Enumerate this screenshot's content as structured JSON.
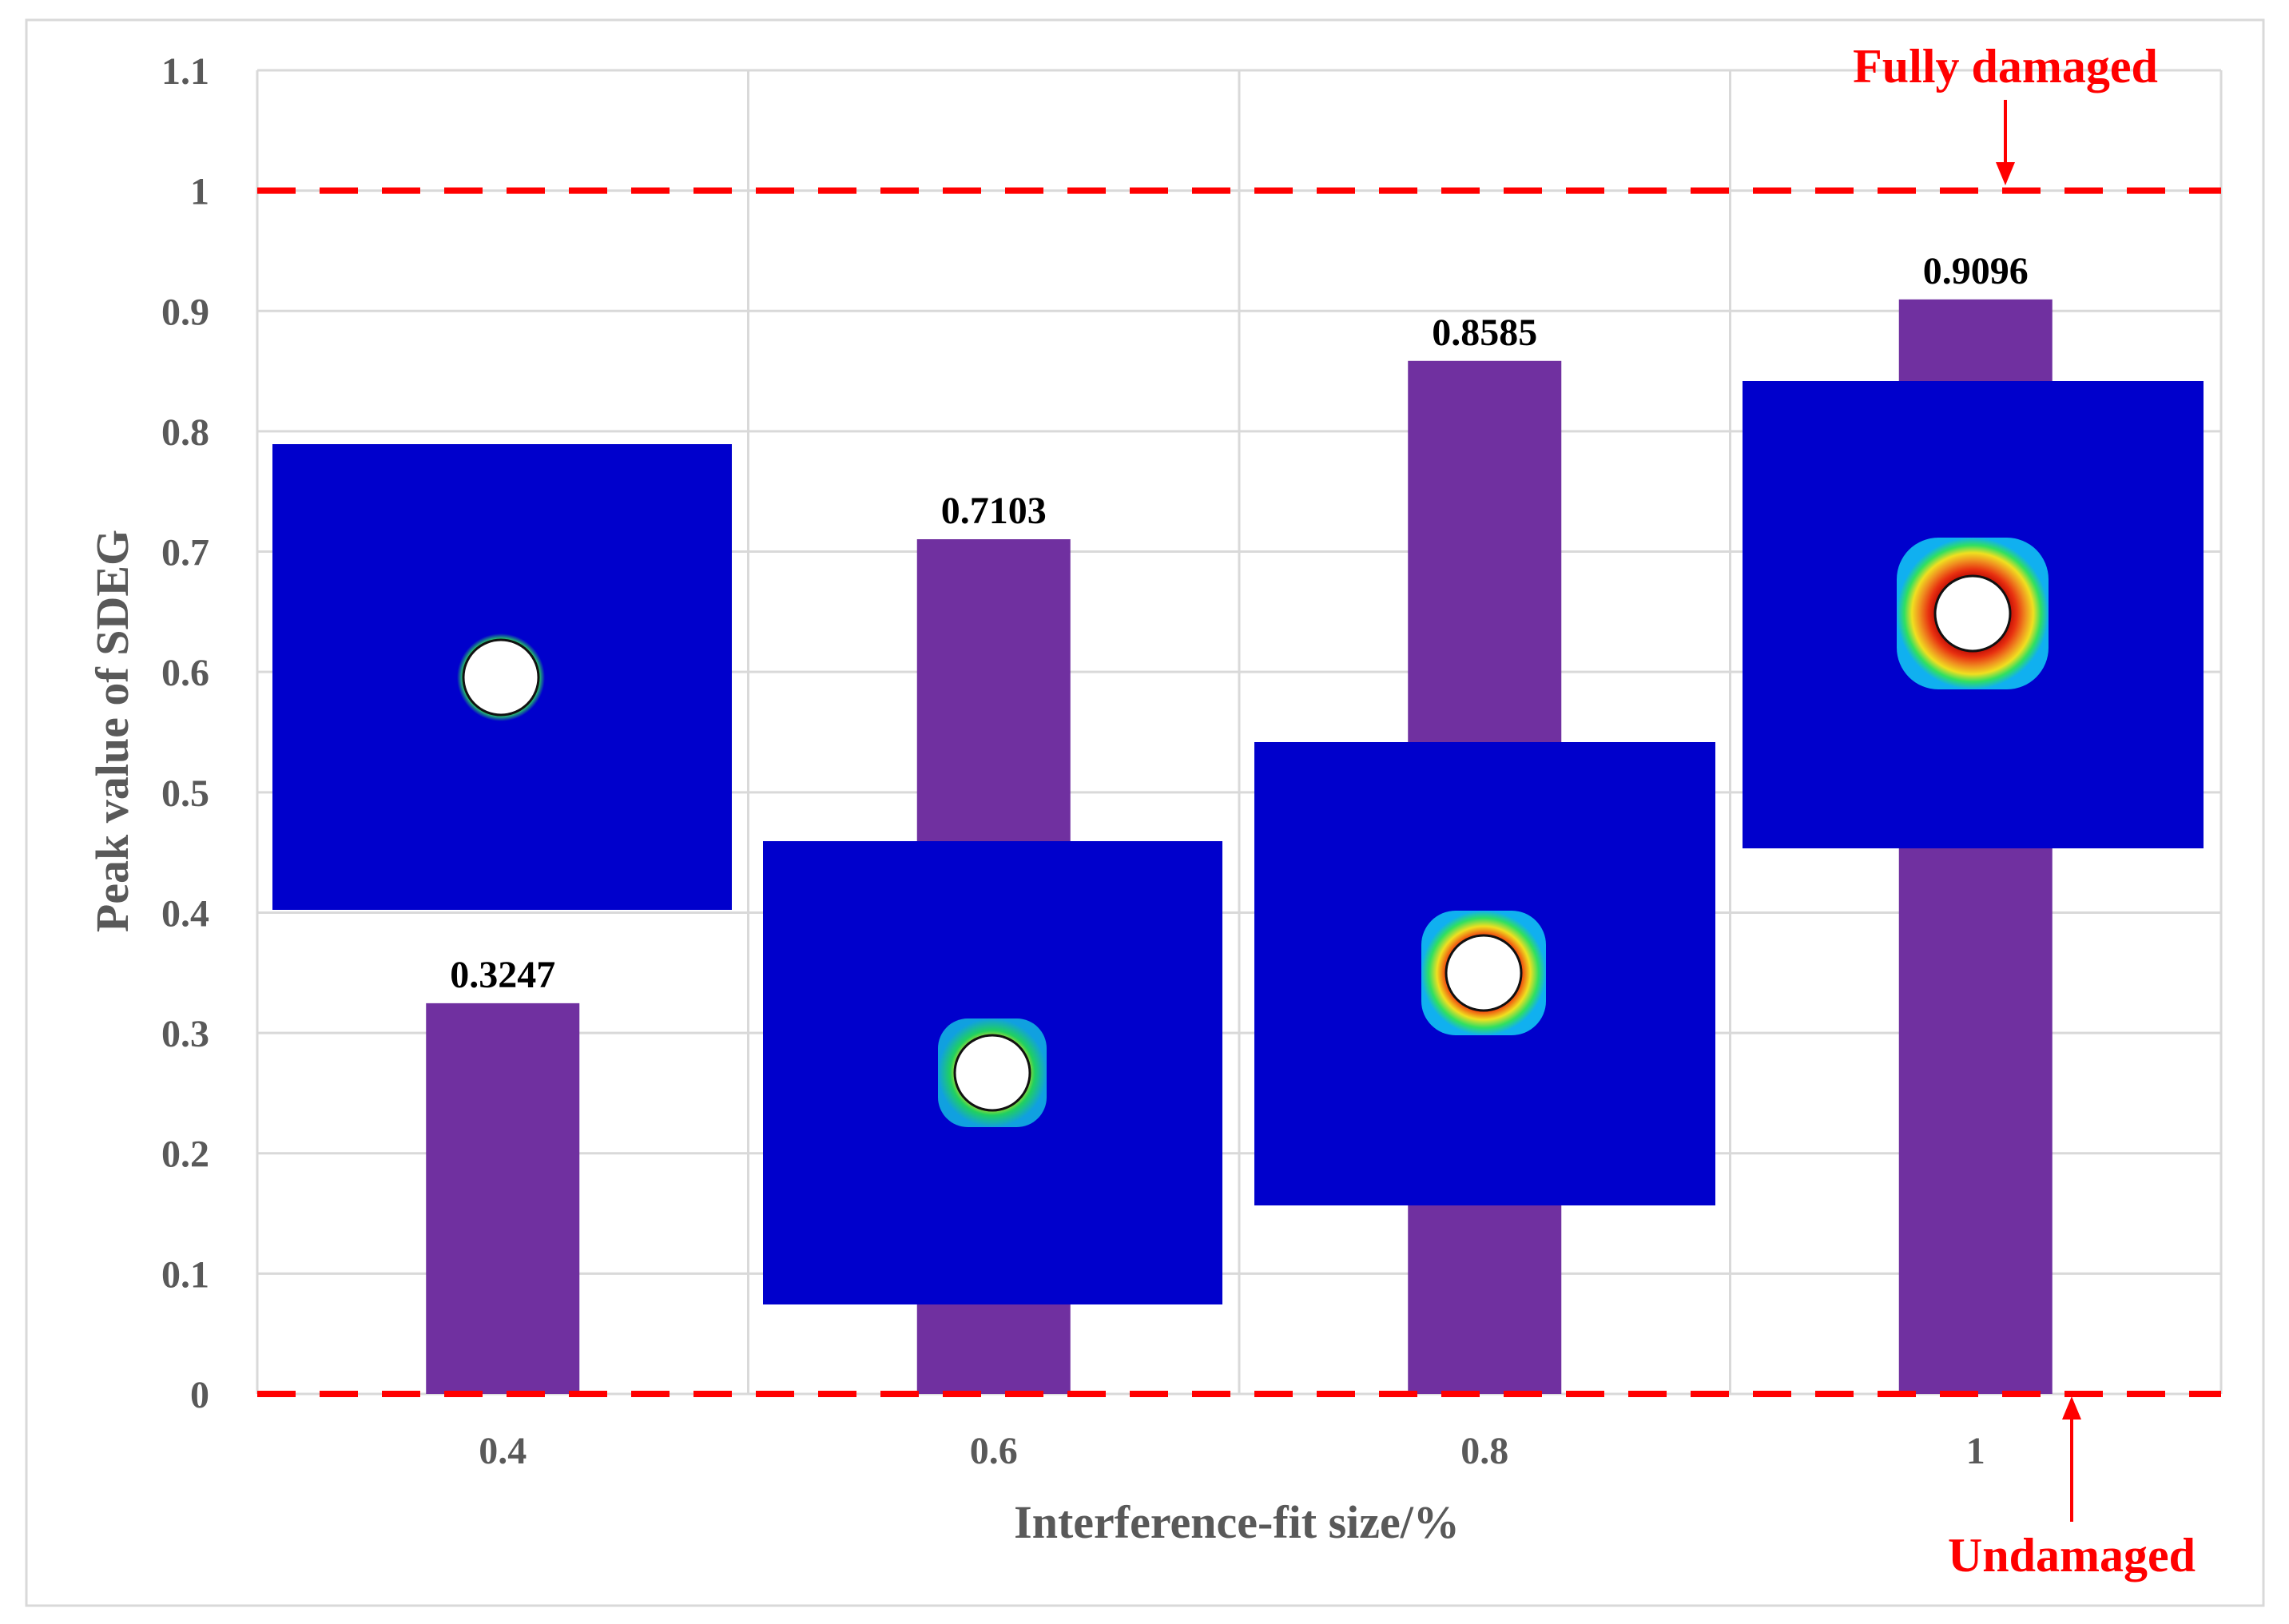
{
  "chart_data": {
    "type": "bar",
    "title": "",
    "xlabel": "Interference-fit size/%",
    "ylabel": "Peak value of SDEG",
    "categories": [
      "0.4",
      "0.6",
      "0.8",
      "1"
    ],
    "values": [
      0.3247,
      0.7103,
      0.8585,
      0.9096
    ],
    "data_labels": [
      "0.3247",
      "0.7103",
      "0.8585",
      "0.9096"
    ],
    "ylim": [
      0,
      1.1
    ],
    "yticks": [
      "0",
      "0.1",
      "0.2",
      "0.3",
      "0.4",
      "0.5",
      "0.6",
      "0.7",
      "0.8",
      "0.9",
      "1",
      "1.1"
    ],
    "grid": true,
    "legend": "none",
    "reference_lines": [
      {
        "value": 1,
        "label": "Fully damaged",
        "style": "dashed"
      },
      {
        "value": 0,
        "label": "Undamaged",
        "style": "dashed"
      }
    ],
    "inset_contour_images": [
      {
        "category": "0.4",
        "damage_ring": "thin"
      },
      {
        "category": "0.6",
        "damage_ring": "small"
      },
      {
        "category": "0.8",
        "damage_ring": "medium"
      },
      {
        "category": "1",
        "damage_ring": "large"
      }
    ]
  },
  "colors": {
    "bar": "#7030A0",
    "reference_line": "#FF0000",
    "annotation_text": "#FF0000",
    "inset_background": "#0000CC",
    "gridline": "#D9D9D9",
    "axis_text": "#595959"
  }
}
